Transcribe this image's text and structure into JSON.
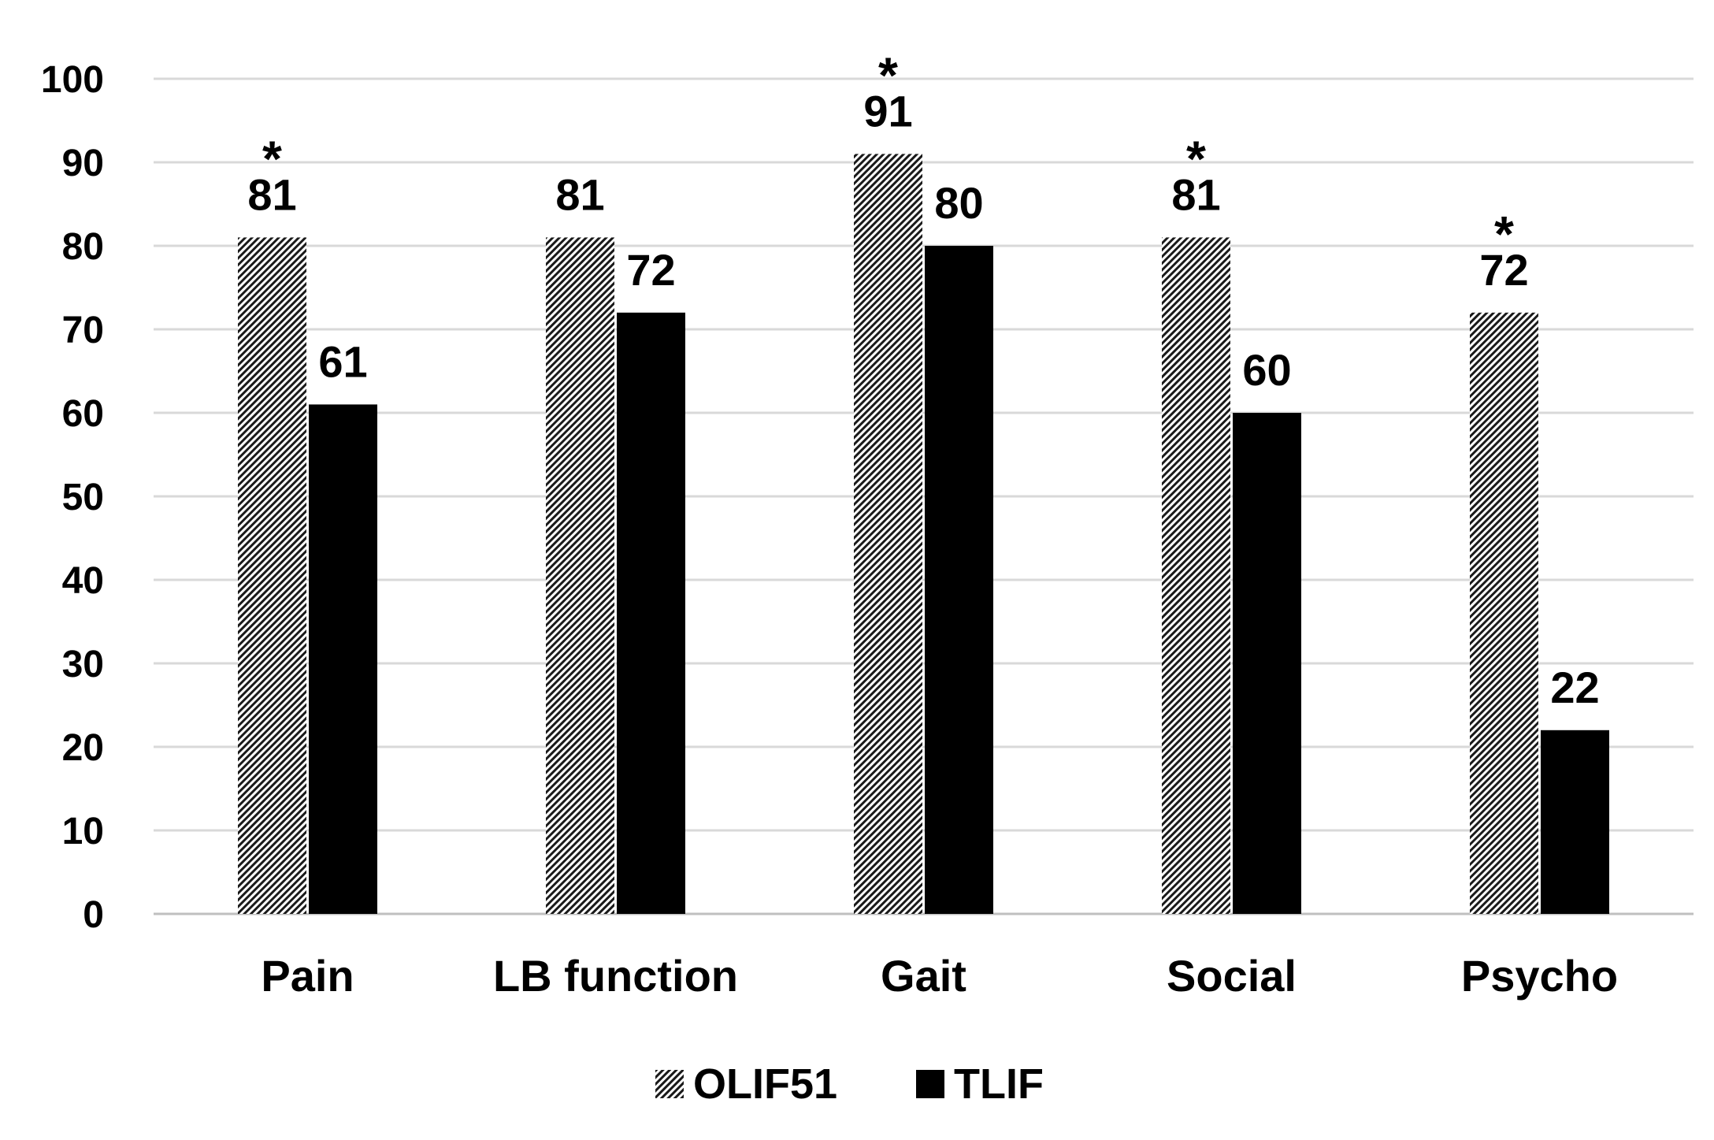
{
  "chart_data": {
    "type": "bar",
    "title": "",
    "xlabel": "",
    "ylabel": "",
    "categories": [
      "Pain",
      "LB function",
      "Gait",
      "Social",
      "Psycho"
    ],
    "series": [
      {
        "name": "OLIF51",
        "pattern": "hatched",
        "values": [
          81,
          81,
          91,
          81,
          72
        ]
      },
      {
        "name": "TLIF",
        "pattern": "solid",
        "values": [
          61,
          72,
          80,
          60,
          22
        ]
      }
    ],
    "significance": [
      {
        "category": "Pain",
        "marker": "*"
      },
      {
        "category": "Gait",
        "marker": "*"
      },
      {
        "category": "Social",
        "marker": "*"
      },
      {
        "category": "Psycho",
        "marker": "*"
      }
    ],
    "ylim": [
      0,
      100
    ],
    "yticks": [
      0,
      10,
      20,
      30,
      40,
      50,
      60,
      70,
      80,
      90,
      100
    ],
    "grid": true,
    "legend_position": "bottom-center",
    "colors": {
      "tlif": "#000000",
      "hatch_fg": "#1a1a1a",
      "hatch_bg": "#ffffff",
      "grid": "#d9d9d9",
      "axis": "#bfbfbf",
      "text": "#000000"
    }
  }
}
